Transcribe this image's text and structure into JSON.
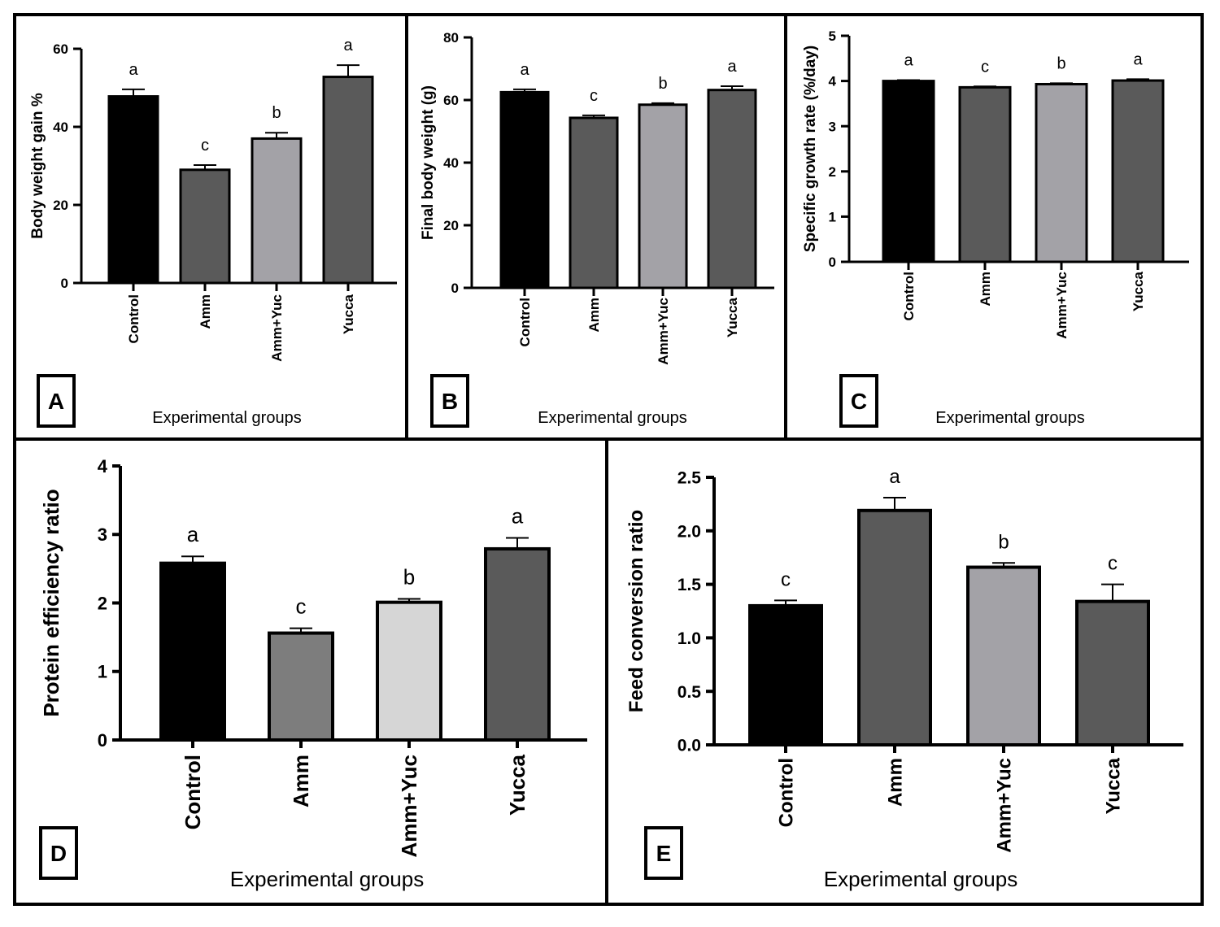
{
  "colors": {
    "black": "#000000",
    "dark_gray": "#5a5a5a",
    "mid_gray": "#7d7d7d",
    "light_gray": "#a3a2a7",
    "pale_gray": "#d6d6d6"
  },
  "chart_data": [
    {
      "panel": "A",
      "type": "bar",
      "categories": [
        "Control",
        "Amm",
        "Amm+Yuc",
        "Yucca"
      ],
      "values": [
        47.8,
        29.0,
        37.0,
        52.8
      ],
      "errors": [
        1.8,
        1.2,
        1.5,
        3.0
      ],
      "significance": [
        "a",
        "c",
        "b",
        "a"
      ],
      "bar_colors": [
        "#000000",
        "#5a5a5a",
        "#a3a2a7",
        "#5a5a5a"
      ],
      "ylabel": "Body weight gain %",
      "xlabel": "Experimental groups",
      "ylim": [
        0,
        60
      ],
      "yticks": [
        "0",
        "20",
        "40",
        "60"
      ]
    },
    {
      "panel": "B",
      "type": "bar",
      "categories": [
        "Control",
        "Amm",
        "Amm+Yuc",
        "Yucca"
      ],
      "values": [
        62.5,
        54.3,
        58.5,
        63.2
      ],
      "errors": [
        0.9,
        0.8,
        0.5,
        1.2
      ],
      "significance": [
        "a",
        "c",
        "b",
        "a"
      ],
      "bar_colors": [
        "#000000",
        "#5a5a5a",
        "#a3a2a7",
        "#5a5a5a"
      ],
      "ylabel": "Final body weight (g)",
      "xlabel": "Experimental groups",
      "ylim": [
        0,
        80
      ],
      "yticks": [
        "0",
        "20",
        "40",
        "60",
        "80"
      ]
    },
    {
      "panel": "C",
      "type": "bar",
      "categories": [
        "Control",
        "Amm",
        "Amm+Yuc",
        "Yucca"
      ],
      "values": [
        4.0,
        3.86,
        3.93,
        4.01
      ],
      "errors": [
        0.02,
        0.02,
        0.02,
        0.03
      ],
      "significance": [
        "a",
        "c",
        "b",
        "a"
      ],
      "bar_colors": [
        "#000000",
        "#5a5a5a",
        "#a3a2a7",
        "#5a5a5a"
      ],
      "ylabel": "Specific growth rate (%/day)",
      "xlabel": "Experimental groups",
      "ylim": [
        0,
        5
      ],
      "yticks": [
        "0",
        "1",
        "2",
        "3",
        "4",
        "5"
      ]
    },
    {
      "panel": "D",
      "type": "bar",
      "categories": [
        "Control",
        "Amm",
        "Amm+Yuc",
        "Yucca"
      ],
      "values": [
        2.58,
        1.56,
        2.01,
        2.79
      ],
      "errors": [
        0.1,
        0.07,
        0.05,
        0.16
      ],
      "significance": [
        "a",
        "c",
        "b",
        "a"
      ],
      "bar_colors": [
        "#000000",
        "#7d7d7d",
        "#d6d6d6",
        "#5a5a5a"
      ],
      "ylabel": "Protein efficiency ratio",
      "xlabel": "Experimental groups",
      "ylim": [
        0,
        4
      ],
      "yticks": [
        "0",
        "1",
        "2",
        "3",
        "4"
      ]
    },
    {
      "panel": "E",
      "type": "bar",
      "categories": [
        "Control",
        "Amm",
        "Amm+Yuc",
        "Yucca"
      ],
      "values": [
        1.3,
        2.19,
        1.66,
        1.34
      ],
      "errors": [
        0.05,
        0.12,
        0.04,
        0.16
      ],
      "significance": [
        "c",
        "a",
        "b",
        "c"
      ],
      "bar_colors": [
        "#000000",
        "#5a5a5a",
        "#a3a2a7",
        "#5a5a5a"
      ],
      "ylabel": "Feed conversion ratio",
      "xlabel": "Experimental groups",
      "ylim": [
        0,
        2.5
      ],
      "yticks": [
        "0.0",
        "0.5",
        "1.0",
        "1.5",
        "2.0",
        "2.5"
      ]
    }
  ]
}
